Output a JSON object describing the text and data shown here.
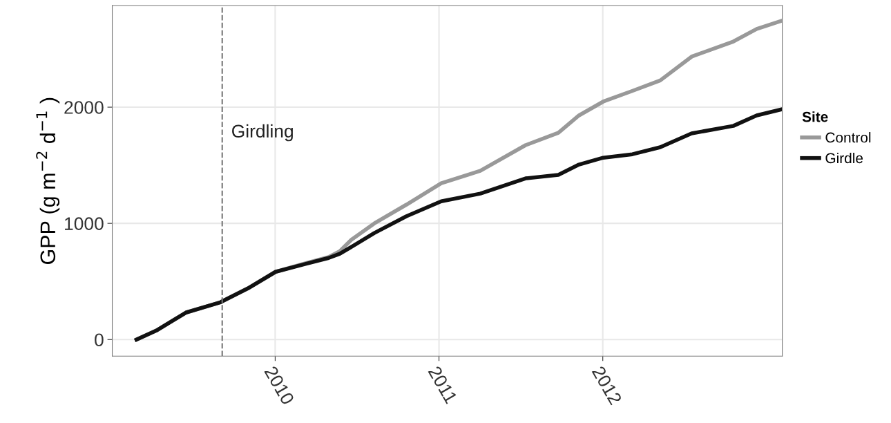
{
  "chart_data": {
    "type": "line",
    "ylabel": "GPP (g m$^{−2}$ d$^{−1}$ )",
    "legend_title": "Site",
    "legend": "right",
    "x": [
      "2009-02-26",
      "2009-04-11",
      "2009-06-16",
      "2009-09-01",
      "2009-11-01",
      "2010-01-02",
      "2010-03-08",
      "2010-04-30",
      "2010-05-25",
      "2010-06-20",
      "2010-08-10",
      "2010-10-20",
      "2011-01-06",
      "2011-04-03",
      "2011-07-13",
      "2011-09-24",
      "2011-11-09",
      "2012-01-02",
      "2012-03-07",
      "2012-05-08",
      "2012-07-17",
      "2012-10-18",
      "2012-12-09",
      "2013-02-03"
    ],
    "series": [
      {
        "name": "Control",
        "color": "#999999",
        "values": [
          0,
          77,
          232,
          321,
          440,
          583,
          655,
          710,
          760,
          860,
          1000,
          1160,
          1345,
          1452,
          1673,
          1780,
          1929,
          2048,
          2140,
          2230,
          2435,
          2565,
          2673,
          2744
        ]
      },
      {
        "name": "Girdle",
        "color": "#111111",
        "values": [
          0,
          77,
          232,
          321,
          440,
          583,
          649,
          702,
          738,
          798,
          917,
          1060,
          1190,
          1256,
          1387,
          1417,
          1506,
          1565,
          1595,
          1655,
          1774,
          1839,
          1929,
          1982
        ]
      }
    ],
    "xlim": [
      "2009-01-03",
      "2013-02-04"
    ],
    "ylim": [
      -143,
      2875
    ],
    "xticks": [
      {
        "value": "2010-01-01",
        "label": "2010"
      },
      {
        "value": "2011-01-01",
        "label": "2011"
      },
      {
        "value": "2012-01-01",
        "label": "2012"
      }
    ],
    "yticks": [
      0,
      1000,
      2000
    ],
    "ref_lines": [
      {
        "axis": "x",
        "value": "2009-09-05",
        "label": "Girdling",
        "color": "#777777",
        "line_style": "dashed"
      }
    ],
    "grid": true,
    "marker": "none",
    "line_style": "solid"
  }
}
